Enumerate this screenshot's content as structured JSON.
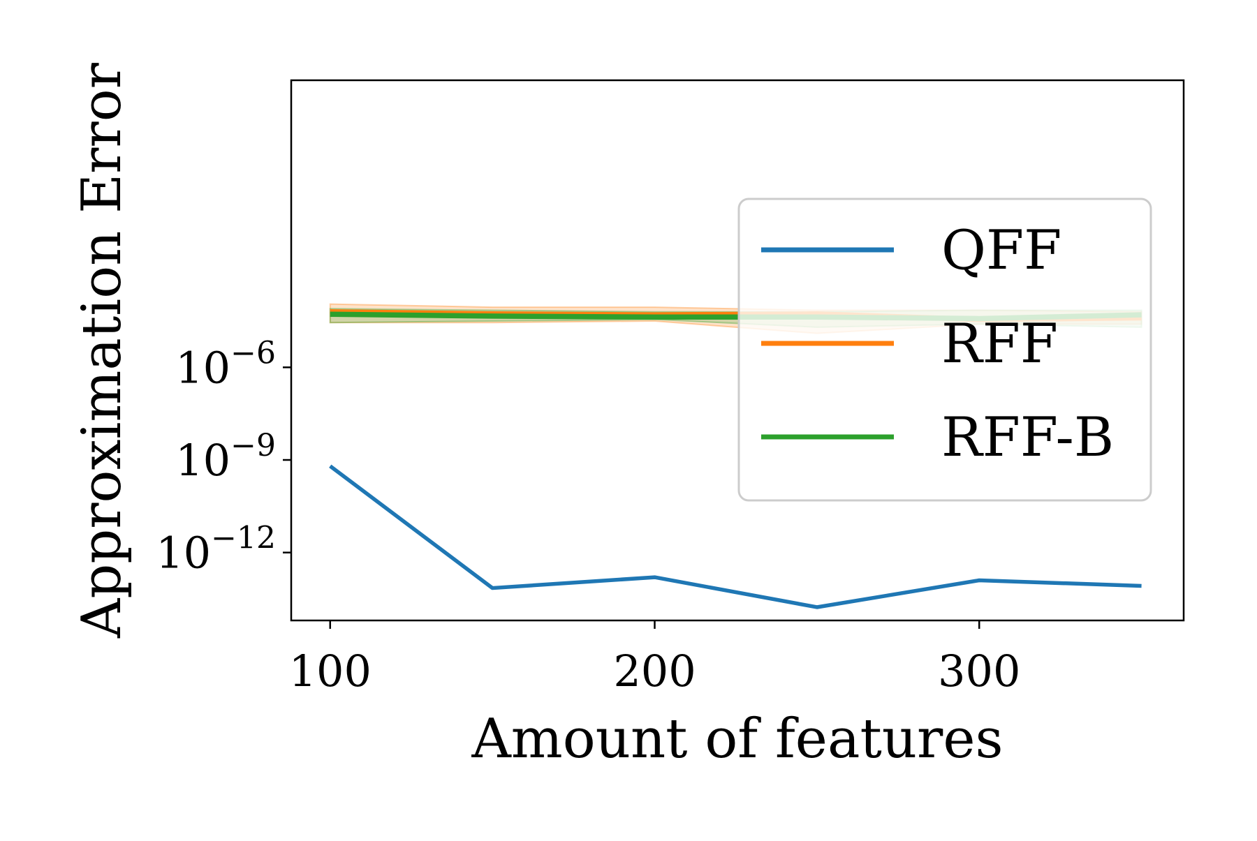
{
  "chart_data": {
    "type": "line",
    "title": "",
    "xlabel": "Amount of features",
    "ylabel": "Approximation Error",
    "yscale": "log",
    "x": [
      100,
      150,
      200,
      250,
      300,
      350
    ],
    "xlim": [
      88,
      363
    ],
    "ylim_log10": [
      -14.2,
      3.3
    ],
    "xticks": [
      {
        "value": 100,
        "label": "100"
      },
      {
        "value": 200,
        "label": "200"
      },
      {
        "value": 300,
        "label": "300"
      }
    ],
    "yticks": [
      {
        "log10": -6,
        "base": "10",
        "exp": "−6"
      },
      {
        "log10": -9,
        "base": "10",
        "exp": "−9"
      },
      {
        "log10": -12,
        "base": "10",
        "exp": "−12"
      }
    ],
    "grid": false,
    "legend": {
      "position": "center-right"
    },
    "series": [
      {
        "name": "QFF",
        "color": "#1f77b4",
        "log10_values": [
          -9.2,
          -13.15,
          -12.8,
          -13.77,
          -12.9,
          -13.08
        ]
      },
      {
        "name": "RFF",
        "color": "#ff7f0e",
        "log10_values": [
          -4.2,
          -4.27,
          -4.3,
          -4.27,
          -4.45,
          -4.4
        ],
        "band_log10_lower": [
          -4.55,
          -4.55,
          -4.5,
          -4.9,
          -4.6,
          -4.6
        ],
        "band_log10_upper": [
          -3.95,
          -4.05,
          -4.05,
          -4.15,
          -4.15,
          -4.2
        ]
      },
      {
        "name": "RFF-B",
        "color": "#2ca02c",
        "log10_values": [
          -4.28,
          -4.34,
          -4.37,
          -4.37,
          -4.42,
          -4.3
        ],
        "band_log10_lower": [
          -4.55,
          -4.5,
          -4.45,
          -4.7,
          -4.6,
          -4.7
        ],
        "band_log10_upper": [
          -4.1,
          -4.15,
          -4.2,
          -4.2,
          -4.15,
          -4.15
        ]
      }
    ]
  }
}
